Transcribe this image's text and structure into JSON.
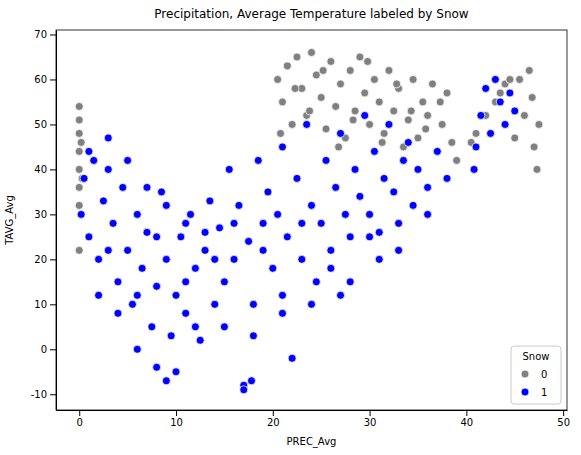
{
  "chart_data": {
    "type": "scatter",
    "title": "Precipitation, Average Temperature labeled by Snow",
    "x_label": "PREC_Avg",
    "y_label": "TAVG_Avg",
    "legend_title": "Snow",
    "legend": "lower right",
    "grid": false,
    "xlim": [
      -2.4,
      50.4
    ],
    "xticks": [
      0,
      10,
      20,
      30,
      40,
      50
    ],
    "ylim": [
      -13.5,
      71
    ],
    "yticks": [
      -10,
      0,
      10,
      20,
      30,
      40,
      50,
      60,
      70
    ],
    "series": [
      {
        "name": "0",
        "color": "grey",
        "marker": "circle",
        "x": [
          0,
          0,
          0,
          0,
          0,
          0,
          0,
          0,
          0.2,
          0.3,
          20.5,
          21,
          21.5,
          22,
          22.5,
          23,
          23.5,
          24,
          24.5,
          25,
          25.5,
          26,
          26.5,
          27,
          27.5,
          28,
          28.5,
          29,
          29.5,
          30,
          30.5,
          31,
          31.5,
          32,
          32.5,
          33,
          33.5,
          34,
          34.5,
          35,
          35.5,
          36,
          36.5,
          37,
          37.5,
          38,
          38.5,
          39,
          20.8,
          22.3,
          23.8,
          25.2,
          26.8,
          28.3,
          29.8,
          31.3,
          32.8,
          34.3,
          35.8,
          37.3,
          41,
          42,
          43,
          44,
          45,
          45.5,
          46,
          46.5,
          47,
          47.3,
          47.5,
          46.8,
          44.5,
          43.5,
          40.5
        ],
        "values": [
          22,
          32,
          36,
          40,
          44,
          48,
          51,
          54,
          46,
          38,
          60,
          55,
          63,
          50,
          65,
          58,
          52,
          66,
          61,
          56,
          49,
          64,
          54,
          59,
          47,
          62,
          53,
          65,
          57,
          50,
          60,
          55,
          48,
          62,
          53,
          58,
          45,
          51,
          60,
          47,
          55,
          52,
          59,
          44,
          50,
          57,
          46,
          42,
          48,
          58,
          53,
          62,
          45,
          51,
          64,
          46,
          59,
          53,
          49,
          55,
          48,
          52,
          55,
          59,
          47,
          60,
          52,
          62,
          45,
          40,
          50,
          56,
          60,
          57,
          46
        ]
      },
      {
        "name": "1",
        "color": "blue",
        "marker": "circle",
        "x": [
          0.2,
          0.5,
          1,
          1.5,
          2,
          2.5,
          3,
          3.5,
          4,
          4.5,
          5,
          5.5,
          6,
          6.5,
          7,
          7.5,
          8,
          8.5,
          9,
          9.5,
          10,
          10.5,
          11,
          11.5,
          12,
          12.5,
          13,
          13.5,
          14,
          14.5,
          15,
          15.5,
          16,
          16.5,
          17,
          17.5,
          18,
          18.5,
          19,
          19.5,
          20,
          20.5,
          21,
          21.5,
          22,
          22.5,
          23,
          23.5,
          24,
          24.5,
          25,
          25.5,
          26,
          26.5,
          27,
          27.5,
          28,
          28.5,
          29,
          29.5,
          30,
          30.5,
          31,
          31.5,
          32,
          32.5,
          33,
          33.5,
          34,
          34.5,
          35,
          36,
          37,
          38,
          2,
          4,
          6,
          8,
          9,
          10,
          1,
          3,
          5,
          7,
          9,
          11,
          13,
          17,
          17.8,
          12,
          41,
          41.5,
          42,
          42.5,
          43,
          43.5,
          44,
          44.5,
          45,
          40.8,
          3,
          6,
          8,
          11,
          14,
          16,
          19,
          21,
          23,
          26,
          28,
          31,
          33,
          36,
          15,
          18,
          21,
          24,
          27,
          30
        ],
        "values": [
          30,
          38,
          25,
          42,
          20,
          33,
          47,
          28,
          15,
          36,
          22,
          10,
          30,
          18,
          26,
          5,
          14,
          35,
          20,
          3,
          12,
          25,
          8,
          30,
          18,
          2,
          22,
          33,
          10,
          27,
          15,
          40,
          20,
          32,
          -8,
          24,
          10,
          42,
          28,
          35,
          18,
          30,
          45,
          25,
          -2,
          38,
          20,
          50,
          32,
          15,
          28,
          42,
          22,
          36,
          48,
          30,
          25,
          40,
          34,
          52,
          30,
          44,
          26,
          38,
          50,
          35,
          28,
          42,
          46,
          32,
          40,
          36,
          44,
          38,
          12,
          8,
          0,
          -4,
          -7,
          -5,
          44,
          40,
          42,
          36,
          32,
          28,
          26,
          -9,
          -7,
          5,
          45,
          52,
          58,
          48,
          60,
          55,
          50,
          57,
          53,
          40,
          22,
          12,
          25,
          15,
          20,
          28,
          22,
          12,
          28,
          18,
          15,
          20,
          22,
          30,
          5,
          3,
          8,
          10,
          12,
          25
        ]
      }
    ]
  }
}
